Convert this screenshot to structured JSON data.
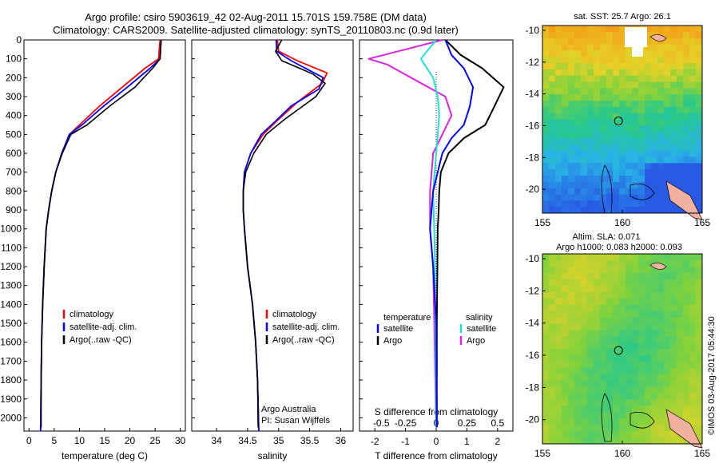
{
  "title_line1": "Argo profile: csiro 5903619_42 02-Aug-2011 15.701S 159.758E (DM data)",
  "title_line2": "Climatology: CARS2009. Satellite-adjusted climatology: synTS_20110803.nc (0.9d later)",
  "credit_org": "Argo Australia",
  "credit_pi": "PI: Susan Wijffels",
  "timestamp": "©IMOS 03-Aug-2017 05:44:30",
  "colors": {
    "climatology": "#ff0000",
    "satellite": "#0000ff",
    "argo": "#000000",
    "salinity_satellite": "#22dddd",
    "salinity_argo": "#dd22dd"
  },
  "chart_data": [
    {
      "type": "line",
      "xlabel": "temperature (deg C)",
      "ylabel": "",
      "xlim": [
        -1,
        31
      ],
      "ylim": [
        2070,
        0
      ],
      "xticks": [
        0,
        5,
        10,
        15,
        20,
        25,
        30
      ],
      "xtick_labels": [
        "0",
        "5",
        "10",
        "15",
        "20",
        "25",
        "30"
      ],
      "yticks": [
        0,
        100,
        200,
        300,
        400,
        500,
        600,
        700,
        800,
        900,
        1000,
        1100,
        1200,
        1300,
        1400,
        1500,
        1600,
        1700,
        1800,
        1900,
        2000
      ],
      "ytick_labels": [
        "0",
        "100",
        "200",
        "300",
        "400",
        "500",
        "600",
        "700",
        "800",
        "900",
        "1000",
        "1100",
        "1200",
        "1300",
        "1400",
        "1500",
        "1600",
        "1700",
        "1800",
        "1900",
        "2000"
      ],
      "legend": [
        "climatology",
        "satellite-adj. clim.",
        "Argo(..raw -QC)"
      ],
      "legend_position": "lower-center",
      "series": [
        {
          "name": "climatology",
          "x": [
            26,
            25.7,
            23,
            18.5,
            14,
            10,
            8,
            6.5,
            5.3,
            4.5,
            3.9,
            3.4,
            3.0,
            2.7,
            2.5,
            2.4,
            2.3
          ],
          "y": [
            0,
            100,
            150,
            250,
            350,
            450,
            500,
            600,
            700,
            800,
            900,
            1000,
            1200,
            1400,
            1600,
            1800,
            2070
          ]
        },
        {
          "name": "satellite-adj. clim.",
          "x": [
            26.2,
            26,
            24,
            19.5,
            14.8,
            10.5,
            8,
            6.5,
            5.3,
            4.5,
            3.9,
            3.4,
            3.0,
            2.7,
            2.5,
            2.4,
            2.3
          ],
          "y": [
            0,
            100,
            150,
            250,
            350,
            450,
            500,
            600,
            700,
            800,
            900,
            1000,
            1200,
            1400,
            1600,
            1800,
            2070
          ]
        },
        {
          "name": "Argo(..raw -QC)",
          "x": [
            26.2,
            26,
            24.5,
            21,
            16,
            11.5,
            8.3,
            6.6,
            5.3,
            4.5,
            3.9,
            3.4,
            3.0,
            2.7,
            2.5,
            2.4,
            2.4
          ],
          "y": [
            0,
            100,
            150,
            250,
            350,
            450,
            500,
            600,
            700,
            800,
            900,
            1000,
            1200,
            1400,
            1600,
            1800,
            2050
          ]
        }
      ]
    },
    {
      "type": "line",
      "xlabel": "salinity",
      "ylabel": "",
      "xlim": [
        33.6,
        36.2
      ],
      "ylim": [
        2070,
        0
      ],
      "xticks": [
        34,
        34.5,
        35,
        35.5,
        36
      ],
      "xtick_labels": [
        "34",
        "34.5",
        "35",
        "35.5",
        "36"
      ],
      "legend": [
        "climatology",
        "satellite-adj. clim.",
        "Argo(..raw -QC)"
      ],
      "legend_position": "lower-right",
      "series": [
        {
          "name": "climatology",
          "x": [
            34.98,
            35.0,
            35.3,
            35.78,
            35.7,
            35.3,
            35.0,
            34.75,
            34.55,
            34.45,
            34.43,
            34.43,
            34.45,
            34.5,
            34.58,
            34.63,
            34.66,
            34.68
          ],
          "y": [
            0,
            60,
            110,
            175,
            230,
            330,
            420,
            500,
            600,
            700,
            800,
            900,
            1000,
            1200,
            1400,
            1600,
            1800,
            2070
          ]
        },
        {
          "name": "satellite-adj. clim.",
          "x": [
            34.96,
            34.97,
            35.2,
            35.72,
            35.65,
            35.2,
            34.95,
            34.72,
            34.55,
            34.45,
            34.43,
            34.43,
            34.45,
            34.5,
            34.58,
            34.63,
            34.66,
            34.68
          ],
          "y": [
            0,
            60,
            110,
            200,
            260,
            350,
            430,
            500,
            600,
            700,
            800,
            900,
            1000,
            1200,
            1400,
            1600,
            1800,
            2070
          ]
        },
        {
          "name": "Argo(..raw -QC)",
          "x": [
            35.05,
            34.95,
            35.05,
            35.55,
            35.75,
            35.6,
            35.1,
            34.8,
            34.6,
            34.47,
            34.43,
            34.43,
            34.45,
            34.5,
            34.58,
            34.63,
            34.66,
            34.67
          ],
          "y": [
            0,
            60,
            110,
            180,
            230,
            300,
            420,
            500,
            600,
            700,
            800,
            900,
            1000,
            1200,
            1400,
            1600,
            1800,
            2050
          ]
        }
      ]
    },
    {
      "type": "line",
      "xlabel": "T difference from climatology",
      "xlabel_top": "S difference from climatology",
      "xlim": [
        -2.5,
        2.5
      ],
      "ylim": [
        2070,
        0
      ],
      "xticks": [
        -2,
        -1,
        0,
        1,
        2
      ],
      "xtick_labels": [
        "-2",
        "-1",
        "0",
        "1",
        "2"
      ],
      "xticks_top": [
        -2,
        -1,
        0,
        1,
        2
      ],
      "xtick_labels_top": [
        "-0.5",
        "-0.25",
        "0",
        "0.25",
        "0.5"
      ],
      "legend_titles": [
        "temperature",
        "salinity"
      ],
      "legend": [
        "satellite",
        "Argo",
        "satellite",
        "Argo"
      ],
      "legend_position": "lower",
      "series": [
        {
          "name": "temperature satellite",
          "x": [
            0.3,
            0.5,
            0.9,
            1.2,
            1.1,
            0.9,
            0.5,
            0.2,
            0.05,
            -0.1,
            -0.15,
            -0.2,
            -0.1,
            0,
            0.02
          ],
          "y": [
            0,
            80,
            150,
            250,
            350,
            450,
            520,
            600,
            700,
            800,
            900,
            1000,
            1200,
            1500,
            2050
          ]
        },
        {
          "name": "temperature Argo",
          "x": [
            0.3,
            0.8,
            1.5,
            2.2,
            1.9,
            1.6,
            0.9,
            0.4,
            0.15,
            0.1,
            0.08,
            0.05,
            0.04,
            0.02,
            0.02
          ],
          "y": [
            0,
            80,
            150,
            250,
            350,
            450,
            520,
            600,
            700,
            800,
            900,
            1000,
            1200,
            1500,
            2050
          ]
        },
        {
          "name": "salinity satellite",
          "x": [
            0,
            -0.5,
            -0.1,
            0.05,
            0.1,
            0.05,
            0,
            -0.05,
            -0.1,
            -0.05,
            0
          ],
          "y": [
            0,
            100,
            200,
            300,
            400,
            500,
            600,
            700,
            800,
            1100,
            2050
          ]
        },
        {
          "name": "salinity Argo",
          "x": [
            0.2,
            -2.2,
            -1.6,
            0.3,
            0.5,
            0.2,
            -0.1,
            -0.2,
            -0.2,
            -0.1,
            0
          ],
          "y": [
            0,
            100,
            130,
            300,
            400,
            500,
            600,
            800,
            1000,
            1200,
            2050
          ]
        }
      ]
    },
    {
      "type": "heatmap",
      "title": "sat. SST: 25.7 Argo: 26.1",
      "xlim": [
        155,
        165
      ],
      "ylim": [
        -21.5,
        -9.7
      ],
      "xticks": [
        155,
        160,
        165
      ],
      "xtick_labels": [
        "155",
        "160",
        "165"
      ],
      "yticks": [
        -10,
        -12,
        -14,
        -16,
        -18,
        -20
      ],
      "ytick_labels": [
        "-10",
        "-12",
        "-14",
        "-16",
        "-18",
        "-20"
      ],
      "profile_location": [
        159.758,
        -15.701
      ]
    },
    {
      "type": "heatmap",
      "title": "Altim. SLA: 0.071",
      "subtitle": "Argo h1000: 0.083 h2000: 0.093",
      "xlim": [
        155,
        165
      ],
      "ylim": [
        -21.5,
        -9.7
      ],
      "xticks": [
        155,
        160,
        165
      ],
      "xtick_labels": [
        "155",
        "160",
        "165"
      ],
      "yticks": [
        -10,
        -12,
        -14,
        -16,
        -18,
        -20
      ],
      "ytick_labels": [
        "-10",
        "-12",
        "-14",
        "-16",
        "-18",
        "-20"
      ],
      "profile_location": [
        159.758,
        -15.701
      ]
    }
  ]
}
